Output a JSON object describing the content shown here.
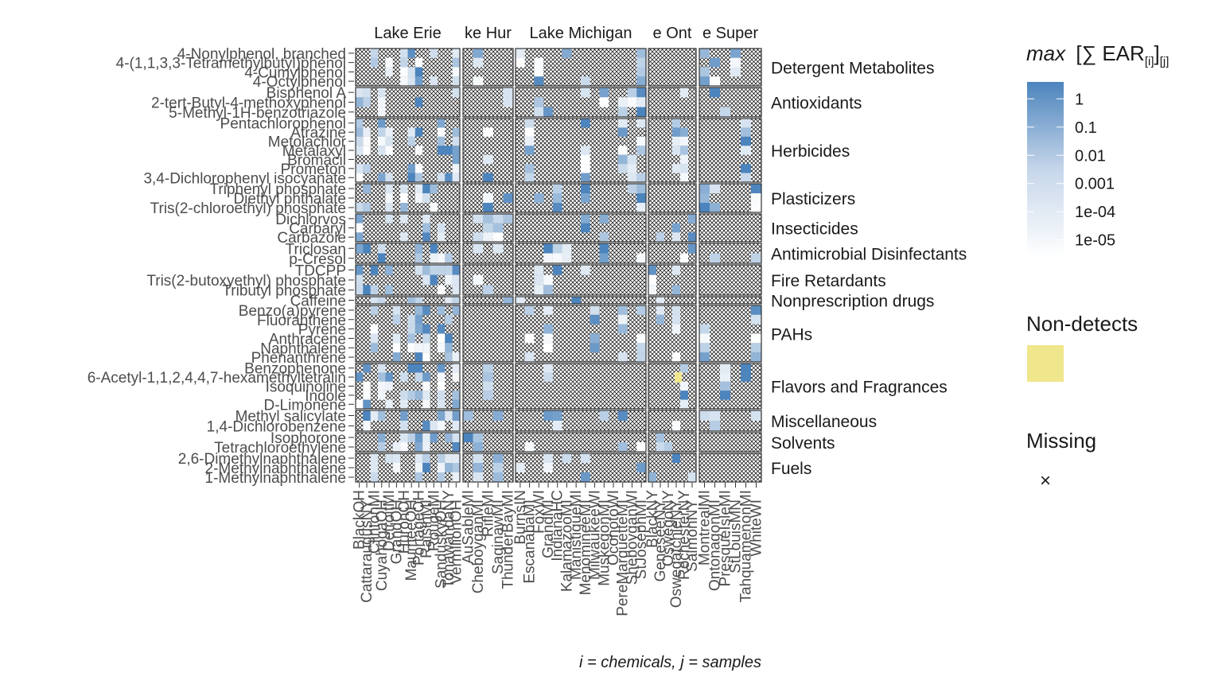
{
  "chart_data": {
    "type": "heatmap",
    "facets": [
      "Lake Erie",
      "Lake Huron",
      "Lake Michigan",
      "Lake Ontario",
      "Lake Superior"
    ],
    "facet_display": [
      "Lake Erie",
      "ke Hur",
      "Lake Michigan",
      "e Ont",
      "e Super"
    ],
    "sites": [
      {
        "facet": 0,
        "labels": [
          "BlackOH",
          "CattaraugusNY",
          "ClintonMI",
          "CuyahogaOH",
          "DetroitMI",
          "GrandOH",
          "HuronOH",
          "MaumeeOH",
          "PortageOH",
          "RaisinMI",
          "RougeMI",
          "SanduskyOH",
          "TonawandaNY",
          "VermilionOH"
        ]
      },
      {
        "facet": 1,
        "labels": [
          "AuSableMI",
          "CheboyganMI",
          "RifleMI",
          "SaginawMI",
          "ThunderBayMI"
        ]
      },
      {
        "facet": 2,
        "labels": [
          "BurnsIN",
          "EscanabaMI",
          "FoxWI",
          "GrandMI",
          "IndianaHC",
          "KalamazooMI",
          "ManistiqueMI",
          "MenomineeMI",
          "MilwaukeeWI",
          "MuskegonMI",
          "OconotoWI",
          "PereMarquetteMI",
          "SheboyganWI",
          "StJosephMI"
        ]
      },
      {
        "facet": 3,
        "labels": [
          "BlackNY",
          "GeneseeNY",
          "OswegoNY",
          "OswegatchieNY",
          "RochesterNY",
          "SalmonNY"
        ]
      },
      {
        "facet": 4,
        "labels": [
          "MontrealMI",
          "OntonagonMI",
          "PresqueIsleMI",
          "StLouisMN",
          "TahquamenonMI",
          "WhiteWI"
        ]
      }
    ],
    "site_label_rows": [
      {
        "facet": 0,
        "labels": [
          "BlackOH",
          "CattaraugusNY",
          "ClintonMI",
          "CuyahogaOH",
          "DetroitMI",
          "GrandOH",
          "HuronOH",
          "MaumeeOH",
          "PortageOH",
          "RaisinMI",
          "RougeMI",
          "SanduskyOH",
          "TonawandaNY",
          "VermilionOH"
        ]
      }
    ],
    "chemical_classes": [
      {
        "name": "Detergent Metabolites",
        "chemicals": [
          "4-Nonylphenol, branched",
          "4-(1,1,3,3-Tetramethylbutyl)phenol",
          "4-Cumylphenol",
          "4-Octylphenol"
        ]
      },
      {
        "name": "Antioxidants",
        "chemicals": [
          "Bisphenol A",
          "2-tert-Butyl-4-methoxyphenol",
          "5-Methyl-1H-benzotriazole"
        ]
      },
      {
        "name": "Herbicides",
        "chemicals": [
          "Pentachlorophenol",
          "Atrazine",
          "Metolachlor",
          "Metalaxyl",
          "Bromacil",
          "Prometon",
          "3,4-Dichlorophenyl isocyanate"
        ]
      },
      {
        "name": "Plasticizers",
        "chemicals": [
          "Triphenyl phosphate",
          "Diethyl phthalate",
          "Tris(2-chloroethyl) phosphate"
        ]
      },
      {
        "name": "Insecticides",
        "chemicals": [
          "Dichlorvos",
          "Carbaryl",
          "Carbazole"
        ]
      },
      {
        "name": "Antimicrobial Disinfectants",
        "chemicals": [
          "Triclosan",
          "p-Cresol"
        ]
      },
      {
        "name": "Fire Retardants",
        "chemicals": [
          "TDCPP",
          "Tris(2-butoxyethyl) phosphate",
          "Tributyl phosphate"
        ]
      },
      {
        "name": "Nonprescription drugs",
        "chemicals": [
          "Caffeine"
        ]
      },
      {
        "name": "PAHs",
        "chemicals": [
          "Benzo(a)pyrene",
          "Fluoranthene",
          "Pyrene",
          "Anthracene",
          "Naphthalene",
          "Phenanthrene"
        ]
      },
      {
        "name": "Flavors and Fragrances",
        "chemicals": [
          "Benzophenone",
          "6-Acetyl-1,1,2,4,4,7-hexamethyltetralin",
          "Isoquinoline",
          "Indole",
          "D-Limonene"
        ]
      },
      {
        "name": "Miscellaneous",
        "chemicals": [
          "Methyl salicylate",
          "1,4-Dichlorobenzene"
        ]
      },
      {
        "name": "Solvents",
        "chemicals": [
          "Isophorone",
          "Tetrachloroethylene"
        ]
      },
      {
        "name": "Fuels",
        "chemicals": [
          "2,6-Dimethylnaphthalene",
          "2-Methylnaphthalene",
          "1-Methylnaphthalene"
        ]
      }
    ],
    "color_scale": {
      "low": "#ffffff",
      "high": "#4c84bd",
      "nondetect": "#f0e68c",
      "missing_mark": "x",
      "log10_range": [
        -5.6,
        0.6
      ]
    },
    "legend": {
      "title_italic": "max",
      "title_rest": "[∑ EAR",
      "title_sub1": "[i]",
      "title_close": "]",
      "title_sub2": "[j]",
      "ticks": [
        "1",
        "0.1",
        "0.01",
        "0.001",
        "1e-04",
        "1e-05"
      ],
      "nondetect_title": "Non-detects",
      "missing_title": "Missing",
      "missing_glyph": "×"
    },
    "caption": "i = chemicals, j = samples"
  },
  "colors": {
    "panel_border": "#333333",
    "hatch": "#000000",
    "text": "#1a1a1a",
    "axis_text": "#4d4d4d"
  }
}
